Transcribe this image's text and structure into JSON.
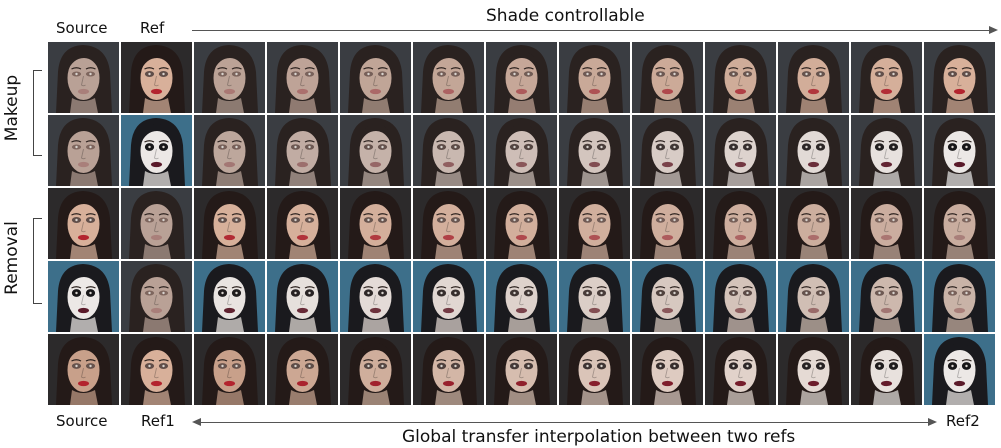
{
  "top_labels": {
    "source": "Source",
    "ref": "Ref",
    "shade_title": "Shade controllable"
  },
  "bottom_labels": {
    "source": "Source",
    "ref1": "Ref1",
    "ref2": "Ref2",
    "interp_title": "Global transfer interpolation between two refs"
  },
  "row_groups": {
    "makeup": "Makeup",
    "removal": "Removal"
  },
  "rows": [
    {
      "name": "makeup-row-1",
      "source": {
        "skin": "#b9a196",
        "lip": "#a97f7a",
        "eye": 0.1,
        "hair": "#2a2220",
        "bg": "#3a3d42"
      },
      "ref": {
        "skin": "#d8b09a",
        "lip": "#b3242e",
        "eye": 0.35,
        "hair": "#241a18",
        "bg": "#2c2a2b"
      },
      "levels": [
        0.08,
        0.16,
        0.24,
        0.32,
        0.41,
        0.5,
        0.6,
        0.7,
        0.8,
        0.9,
        1.0
      ],
      "target": {
        "skin": "#d8b09a",
        "lip": "#b3242e",
        "eye": 0.35
      }
    },
    {
      "name": "makeup-row-2",
      "source": {
        "skin": "#b9a196",
        "lip": "#a97f7a",
        "eye": 0.1,
        "hair": "#2a2220",
        "bg": "#3a3d42"
      },
      "ref": {
        "skin": "#ece8e6",
        "lip": "#5a1a2a",
        "eye": 0.95,
        "hair": "#1a1a1e",
        "bg": "#3d6f8a"
      },
      "levels": [
        0.08,
        0.16,
        0.24,
        0.32,
        0.41,
        0.5,
        0.6,
        0.7,
        0.8,
        0.9,
        1.0
      ],
      "target": {
        "skin": "#ece8e6",
        "lip": "#5a1a2a",
        "eye": 0.95
      }
    },
    {
      "name": "removal-row-1",
      "source": {
        "skin": "#d8b09a",
        "lip": "#b3242e",
        "eye": 0.35,
        "hair": "#241a18",
        "bg": "#2c2a2b"
      },
      "ref": {
        "skin": "#b9a196",
        "lip": "#a97f7a",
        "eye": 0.1,
        "hair": "#2a2220",
        "bg": "#3a3d42"
      },
      "levels": [
        0.08,
        0.16,
        0.24,
        0.32,
        0.41,
        0.5,
        0.6,
        0.7,
        0.8,
        0.9,
        1.0
      ],
      "target": {
        "skin": "#c9ad9f",
        "lip": "#a97f7a",
        "eye": 0.1
      }
    },
    {
      "name": "removal-row-2",
      "source": {
        "skin": "#ece8e6",
        "lip": "#5a1a2a",
        "eye": 0.95,
        "hair": "#1a1a1e",
        "bg": "#3d6f8a"
      },
      "ref": {
        "skin": "#b9a196",
        "lip": "#a97f7a",
        "eye": 0.1,
        "hair": "#2a2220",
        "bg": "#3a3d42"
      },
      "levels": [
        0.08,
        0.16,
        0.24,
        0.32,
        0.41,
        0.5,
        0.6,
        0.7,
        0.8,
        0.9,
        1.0
      ],
      "target": {
        "skin": "#c9b3a7",
        "lip": "#a97f7a",
        "eye": 0.15
      }
    },
    {
      "name": "interp-row",
      "source": {
        "skin": "#c8a08a",
        "lip": "#b3242e",
        "eye": 0.3,
        "hair": "#241a18",
        "bg": "#2c2a2b"
      },
      "ref": {
        "skin": "#d8b09a",
        "lip": "#b3242e",
        "eye": 0.35,
        "hair": "#241a18",
        "bg": "#2c2a2b"
      },
      "levels": [
        0.0,
        0.1,
        0.2,
        0.3,
        0.4,
        0.5,
        0.6,
        0.7,
        0.8,
        0.9
      ],
      "target": {
        "skin": "#ece8e6",
        "lip": "#5a1a2a",
        "eye": 0.95
      },
      "ref2": {
        "skin": "#ece8e6",
        "lip": "#5a1a2a",
        "eye": 0.95,
        "hair": "#1a1a1e",
        "bg": "#3d6f8a"
      }
    }
  ]
}
